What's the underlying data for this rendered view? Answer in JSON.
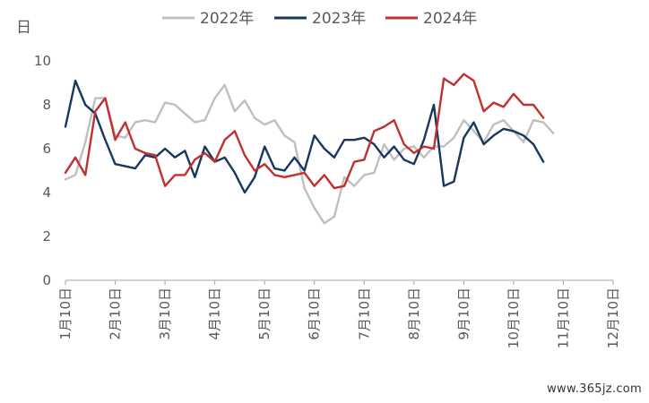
{
  "chart_data": {
    "type": "line",
    "title": "",
    "ylabel": "日",
    "xlabel": "",
    "ylim": [
      0,
      10
    ],
    "yticks": [
      0,
      2,
      4,
      6,
      8,
      10
    ],
    "x_period_count": 56,
    "x_tick_labels": [
      "1月10日",
      "2月10日",
      "3月10日",
      "4月10日",
      "5月10日",
      "6月10日",
      "7月10日",
      "8月10日",
      "9月10日",
      "10月10日",
      "11月10日",
      "12月10日"
    ],
    "x_tick_positions": [
      0,
      5,
      10,
      15,
      20,
      25,
      30,
      35,
      40,
      45,
      50,
      55
    ],
    "grid": false,
    "legend_position": "top",
    "series": [
      {
        "name": "2022年",
        "color": "#bfbfbf",
        "values": [
          4.6,
          4.8,
          6.3,
          8.3,
          8.3,
          6.6,
          6.5,
          7.2,
          7.3,
          7.2,
          8.1,
          8.0,
          7.6,
          7.2,
          7.3,
          8.3,
          8.9,
          7.7,
          8.2,
          7.4,
          7.1,
          7.3,
          6.6,
          6.3,
          4.2,
          3.3,
          2.6,
          2.9,
          4.7,
          4.3,
          4.8,
          4.9,
          6.2,
          5.5,
          6.0,
          6.1,
          5.6,
          6.1,
          6.1,
          6.5,
          7.3,
          6.8,
          6.3,
          7.1,
          7.3,
          6.8,
          6.3,
          7.3,
          7.2,
          6.7
        ]
      },
      {
        "name": "2023年",
        "color": "#17375e",
        "values": [
          7.0,
          9.1,
          8.0,
          7.6,
          6.4,
          5.3,
          5.2,
          5.1,
          5.7,
          5.6,
          6.0,
          5.6,
          5.9,
          4.7,
          6.1,
          5.4,
          5.6,
          4.9,
          4.0,
          4.7,
          6.1,
          5.1,
          5.0,
          5.6,
          5.0,
          6.6,
          6.0,
          5.6,
          6.4,
          6.4,
          6.5,
          6.2,
          5.6,
          6.1,
          5.5,
          5.3,
          6.4,
          8.0,
          4.3,
          4.5,
          6.5,
          7.2,
          6.2,
          6.6,
          6.9,
          6.8,
          6.6,
          6.2,
          5.4
        ]
      },
      {
        "name": "2024年",
        "color": "#c0302e",
        "values": [
          4.9,
          5.6,
          4.8,
          7.7,
          8.3,
          6.4,
          7.2,
          6.0,
          5.8,
          5.7,
          4.3,
          4.8,
          4.8,
          5.5,
          5.8,
          5.4,
          6.4,
          6.8,
          5.7,
          5.0,
          5.3,
          4.8,
          4.7,
          4.8,
          4.9,
          4.3,
          4.8,
          4.2,
          4.3,
          5.4,
          5.5,
          6.8,
          7.0,
          7.3,
          6.2,
          5.8,
          6.1,
          6.0,
          9.2,
          8.9,
          9.4,
          9.1,
          7.7,
          8.1,
          7.9,
          8.5,
          8.0,
          8.0,
          7.4
        ]
      }
    ]
  },
  "watermark": "www.365jz.com"
}
